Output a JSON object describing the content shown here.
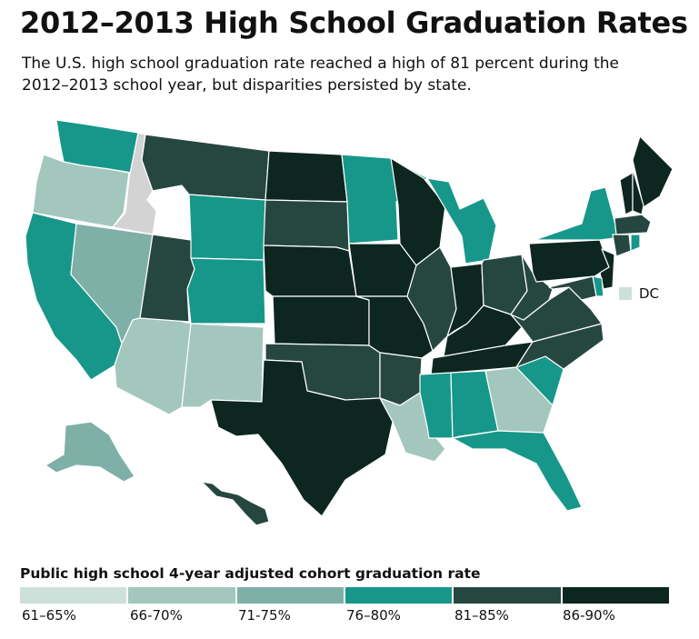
{
  "title": "2012–2013 High School Graduation Rates",
  "subtitle": "The U.S. high school graduation rate reached a high of 81 percent during the 2012–2013 school year, but disparities persisted by state.",
  "legend": {
    "title": "Public high school 4-year adjusted cohort graduation rate",
    "bins": [
      {
        "label": "61–65%",
        "color": "#cde0da"
      },
      {
        "label": "66-70%",
        "color": "#a3c7bd"
      },
      {
        "label": "71-75%",
        "color": "#7fb0a8"
      },
      {
        "label": "76–80%",
        "color": "#17978a"
      },
      {
        "label": "81–85%",
        "color": "#26473f"
      },
      {
        "label": "86-90%",
        "color": "#0d2620"
      }
    ],
    "no_data_color": "#d3d3d3"
  },
  "dc": {
    "label": "DC",
    "color": "#cde0da"
  },
  "states": [
    {
      "name": "WA",
      "bin": 3
    },
    {
      "name": "OR",
      "bin": 1
    },
    {
      "name": "CA",
      "bin": 3
    },
    {
      "name": "ID",
      "bin": -1
    },
    {
      "name": "NV",
      "bin": 2
    },
    {
      "name": "AZ",
      "bin": 1
    },
    {
      "name": "UT",
      "bin": 4
    },
    {
      "name": "MT",
      "bin": 4
    },
    {
      "name": "WY",
      "bin": 3
    },
    {
      "name": "CO",
      "bin": 3
    },
    {
      "name": "NM",
      "bin": 1
    },
    {
      "name": "ND",
      "bin": 5
    },
    {
      "name": "SD",
      "bin": 4
    },
    {
      "name": "NE",
      "bin": 5
    },
    {
      "name": "KS",
      "bin": 5
    },
    {
      "name": "OK",
      "bin": 4
    },
    {
      "name": "TX",
      "bin": 5
    },
    {
      "name": "MN",
      "bin": 3
    },
    {
      "name": "IA",
      "bin": 5
    },
    {
      "name": "MO",
      "bin": 5
    },
    {
      "name": "AR",
      "bin": 4
    },
    {
      "name": "LA",
      "bin": 1
    },
    {
      "name": "WI",
      "bin": 5
    },
    {
      "name": "IL",
      "bin": 4
    },
    {
      "name": "MI",
      "bin": 3
    },
    {
      "name": "IN",
      "bin": 5
    },
    {
      "name": "OH",
      "bin": 4
    },
    {
      "name": "KY",
      "bin": 5
    },
    {
      "name": "TN",
      "bin": 5
    },
    {
      "name": "MS",
      "bin": 3
    },
    {
      "name": "AL",
      "bin": 3
    },
    {
      "name": "GA",
      "bin": 1
    },
    {
      "name": "FL",
      "bin": 3
    },
    {
      "name": "SC",
      "bin": 3
    },
    {
      "name": "NC",
      "bin": 4
    },
    {
      "name": "VA",
      "bin": 4
    },
    {
      "name": "WV",
      "bin": 4
    },
    {
      "name": "PA",
      "bin": 5
    },
    {
      "name": "NY",
      "bin": 3
    },
    {
      "name": "ME",
      "bin": 5
    },
    {
      "name": "VT",
      "bin": 5
    },
    {
      "name": "NH",
      "bin": 5
    },
    {
      "name": "MA",
      "bin": 4
    },
    {
      "name": "CT",
      "bin": 4
    },
    {
      "name": "RI",
      "bin": 3
    },
    {
      "name": "NJ",
      "bin": 5
    },
    {
      "name": "DE",
      "bin": 3
    },
    {
      "name": "MD",
      "bin": 4
    },
    {
      "name": "AK",
      "bin": 2
    },
    {
      "name": "HI",
      "bin": 4
    }
  ]
}
